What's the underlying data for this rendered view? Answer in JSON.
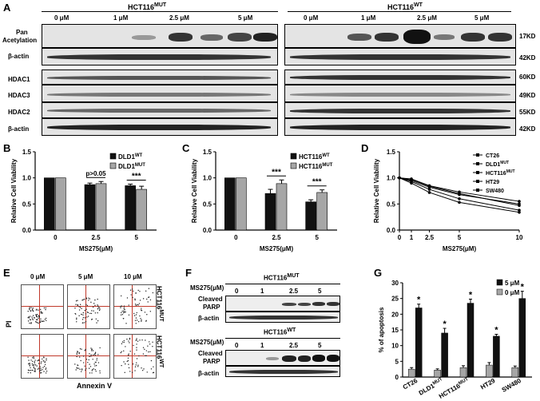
{
  "panel_letters": {
    "a": "A",
    "b": "B",
    "c": "C",
    "d": "D",
    "e": "E",
    "f": "F",
    "g": "G"
  },
  "panel_a": {
    "left_header": "HCT116",
    "left_header_sup": "MUT",
    "right_header": "HCT116",
    "right_header_sup": "WT",
    "doses": [
      "0 μM",
      "1 μM",
      "2.5 μM",
      "5 μM"
    ],
    "row_labels": [
      "Pan",
      "Acetylation",
      "β-actin",
      "HDAC1",
      "HDAC3",
      "HDAC2",
      "β-actin"
    ],
    "kd_labels": [
      "17KD",
      "42KD",
      "60KD",
      "49KD",
      "55KD",
      "42KD"
    ]
  },
  "chart_data": [
    {
      "type": "bar",
      "panel": "B",
      "categories": [
        "0",
        "2.5",
        "5"
      ],
      "series": [
        {
          "name": "DLD1",
          "name_sup": "WT",
          "values": [
            1.0,
            0.87,
            0.85
          ],
          "errors": [
            0,
            0.03,
            0.03
          ]
        },
        {
          "name": "DLD1",
          "name_sup": "MUT",
          "values": [
            1.0,
            0.89,
            0.78
          ],
          "errors": [
            0,
            0.04,
            0.06
          ]
        }
      ],
      "xlabel": "MS275(μM)",
      "ylabel": "Relative Cell Viability",
      "ylim": [
        0,
        1.5
      ],
      "yticks": [
        "0.0",
        "0.5",
        "1.0",
        "1.5"
      ],
      "annotations": [
        "p>0.05",
        "***"
      ],
      "colors": [
        "#111111",
        "#a6a6a6"
      ]
    },
    {
      "type": "bar",
      "panel": "C",
      "categories": [
        "0",
        "2.5",
        "5"
      ],
      "series": [
        {
          "name": "HCT116",
          "name_sup": "WT",
          "values": [
            1.0,
            0.7,
            0.54
          ],
          "errors": [
            0,
            0.08,
            0.04
          ]
        },
        {
          "name": "HCT116",
          "name_sup": "MUT",
          "values": [
            1.0,
            0.89,
            0.72
          ],
          "errors": [
            0,
            0.07,
            0.05
          ]
        }
      ],
      "xlabel": "MS275(μM)",
      "ylabel": "Relative Cell Viability",
      "ylim": [
        0,
        1.5
      ],
      "yticks": [
        "0.0",
        "0.5",
        "1.0",
        "1.5"
      ],
      "annotations": [
        "***",
        "***"
      ],
      "colors": [
        "#111111",
        "#a6a6a6"
      ]
    },
    {
      "type": "line",
      "panel": "D",
      "x": [
        0,
        1,
        2.5,
        5,
        10
      ],
      "xticks": [
        "0",
        "1",
        "2.5",
        "5",
        "10"
      ],
      "series": [
        {
          "name": "CT26",
          "values": [
            1.0,
            0.98,
            0.85,
            0.73,
            0.55
          ]
        },
        {
          "name": "DLD1",
          "name_sup": "MUT",
          "values": [
            1.0,
            0.95,
            0.82,
            0.68,
            0.5
          ]
        },
        {
          "name": "HCT116",
          "name_sup": "MUT",
          "values": [
            1.0,
            0.97,
            0.84,
            0.7,
            0.47
          ]
        },
        {
          "name": "HT29",
          "values": [
            1.0,
            0.93,
            0.78,
            0.6,
            0.38
          ]
        },
        {
          "name": "SW480",
          "values": [
            1.0,
            0.9,
            0.72,
            0.53,
            0.34
          ]
        }
      ],
      "xlabel": "MS275(μM)",
      "ylabel": "Relative Cell Viability",
      "ylim": [
        0,
        1.5
      ],
      "yticks": [
        "0.0",
        "0.5",
        "1.0",
        "1.5"
      ],
      "legend": "top-right"
    },
    {
      "type": "bar",
      "panel": "G",
      "categories": [
        "CT26",
        "DLD1",
        "HCT116",
        "HT29",
        "SW480"
      ],
      "category_sups": [
        "",
        "MUT",
        "MUT",
        "",
        ""
      ],
      "series": [
        {
          "name": "5 μM",
          "values": [
            22,
            14,
            23.5,
            13,
            25
          ],
          "errors": [
            1.2,
            1.5,
            1.3,
            0.6,
            2.3
          ]
        },
        {
          "name": "0 μM",
          "values": [
            2.5,
            2.2,
            3.0,
            3.8,
            3.0
          ],
          "errors": [
            0.5,
            0.4,
            0.6,
            0.8,
            0.5
          ]
        }
      ],
      "ylabel": "% of apoptosis",
      "ylim": [
        0,
        30
      ],
      "yticks": [
        "0",
        "5",
        "10",
        "15",
        "20",
        "25",
        "30"
      ],
      "annotations": [
        "*",
        "*",
        "*",
        "*",
        "*"
      ],
      "legend": "top-right",
      "colors": [
        "#111111",
        "#a6a6a6"
      ]
    }
  ],
  "panel_e": {
    "doses": [
      "0 μM",
      "5 μM",
      "10 μM"
    ],
    "row_labels": [
      "HCT116",
      "HCT116"
    ],
    "row_sups": [
      "MUT",
      "WT"
    ],
    "ylabel": "PI",
    "xlabel": "Annexin V"
  },
  "panel_f": {
    "top_header": "HCT116",
    "top_sup": "MUT",
    "bottom_header": "HCT116",
    "bottom_sup": "WT",
    "dose_label": "MS275(μM)",
    "doses": [
      "0",
      "1",
      "2.5",
      "5"
    ],
    "cleaved": "Cleaved",
    "parp": "PARP",
    "actin": "β-actin"
  }
}
